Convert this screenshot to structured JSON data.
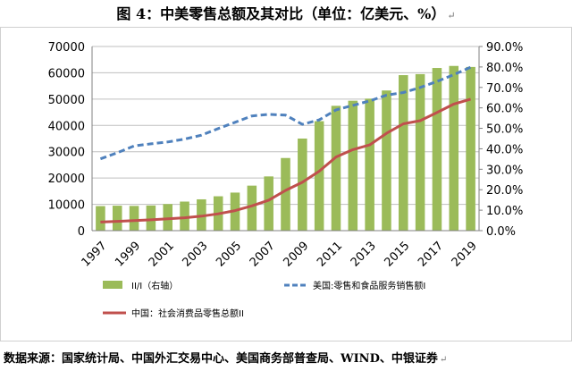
{
  "title": "图 4：中美零售总额及其对比（单位：亿美元、%）",
  "return_mark": "↵",
  "source": "数据来源：国家统计局、中国外汇交易中心、美国商务部普查局、WIND、中银证券",
  "chart_data": {
    "type": "bar",
    "x": [
      1997,
      1998,
      1999,
      2000,
      2001,
      2002,
      2003,
      2004,
      2005,
      2006,
      2007,
      2008,
      2009,
      2010,
      2011,
      2012,
      2013,
      2014,
      2015,
      2016,
      2017,
      2018,
      2019
    ],
    "x_tick_labels": [
      "1997",
      "1999",
      "2001",
      "2003",
      "2005",
      "2007",
      "2009",
      "2011",
      "2013",
      "2015",
      "2017",
      "2019"
    ],
    "ylim_left": [
      0,
      70000
    ],
    "yticks_left": [
      "0",
      "10000",
      "20000",
      "30000",
      "40000",
      "50000",
      "60000",
      "70000"
    ],
    "ylim_right": [
      0,
      90
    ],
    "yticks_right": [
      "0.0%",
      "10.0%",
      "20.0%",
      "30.0%",
      "40.0%",
      "50.0%",
      "60.0%",
      "70.0%",
      "80.0%",
      "90.0%"
    ],
    "grid": "horizontal",
    "legend_position": "bottom",
    "series": [
      {
        "name": "II/I（右轴）",
        "kind": "bar",
        "axis": "right",
        "color": "#9BBB59",
        "values": [
          12.0,
          12.2,
          12.1,
          12.3,
          13.0,
          14.2,
          15.3,
          16.8,
          18.6,
          22.0,
          26.5,
          35.5,
          45.0,
          53.5,
          61.0,
          63.5,
          64.5,
          68.5,
          76.0,
          76.5,
          79.5,
          80.5,
          80.0
        ]
      },
      {
        "name": "美国:零售和食品服务销售额I",
        "kind": "line",
        "axis": "left",
        "style": "dashed",
        "color": "#4F81BD",
        "values": [
          27300,
          29600,
          32200,
          33000,
          33700,
          34800,
          36300,
          38800,
          41200,
          43600,
          44200,
          43900,
          40400,
          42100,
          45900,
          47600,
          49300,
          51500,
          52500,
          54400,
          56700,
          59300,
          62100
        ]
      },
      {
        "name": "中国：社会消费品零售总额II",
        "kind": "line",
        "axis": "left",
        "style": "solid",
        "color": "#C0504D",
        "values": [
          3250,
          3550,
          3800,
          4100,
          4500,
          4900,
          5500,
          6400,
          7600,
          9400,
          11600,
          15300,
          18400,
          22600,
          28000,
          30800,
          32600,
          37000,
          40600,
          41800,
          44900,
          48100,
          50000
        ]
      }
    ]
  }
}
